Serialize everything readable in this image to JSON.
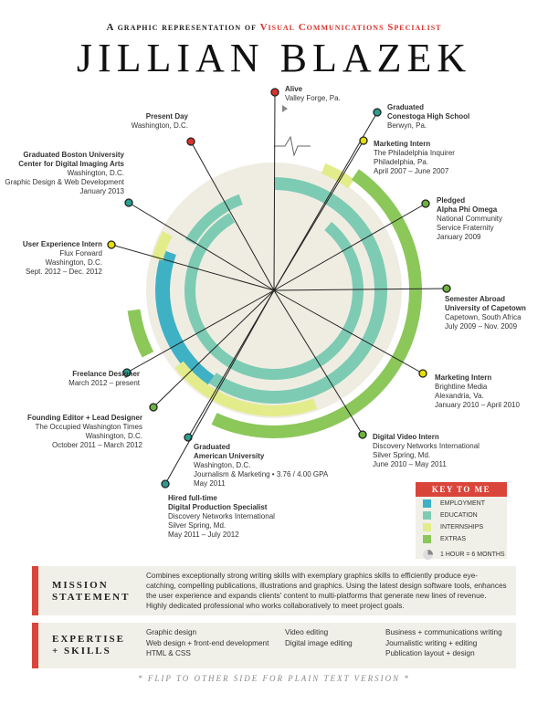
{
  "header": {
    "tagline_pre": "A graphic representation of",
    "tagline_role": "Visual Communications Specialist",
    "name": "JILLIAN BLAZEK"
  },
  "events": [
    {
      "title": [
        "Alive"
      ],
      "details": [
        "Valley Forge, Pa."
      ]
    },
    {
      "title": [
        "Graduated",
        "Conestoga High School"
      ],
      "details": [
        "Berwyn, Pa."
      ]
    },
    {
      "title": [
        "Marketing Intern"
      ],
      "details": [
        "The Philadelphia Inquirer",
        "Philadelphia, Pa.",
        "April 2007 – June 2007"
      ]
    },
    {
      "title": [
        "Pledged",
        "Alpha Phi Omega"
      ],
      "details": [
        "National Community",
        "Service Fraternity",
        "January 2009"
      ]
    },
    {
      "title": [
        "Semester Abroad",
        "University of Capetown"
      ],
      "details": [
        "Capetown, South Africa",
        "July 2009 – Nov. 2009"
      ]
    },
    {
      "title": [
        "Marketing Intern"
      ],
      "details": [
        "Brightline Media",
        "Alexandria, Va.",
        "January 2010 – April 2010"
      ]
    },
    {
      "title": [
        "Digital Video Intern"
      ],
      "details": [
        "Discovery Networks International",
        "Silver Spring, Md.",
        "June 2010 – May 2011"
      ]
    },
    {
      "title": [
        "Graduated",
        "American University"
      ],
      "details": [
        "Washington, D.C.",
        "Journalism & Marketing • 3.76 / 4.00 GPA",
        "May 2011"
      ]
    },
    {
      "title": [
        "Hired full-time",
        "Digital Production Specialist"
      ],
      "details": [
        "Discovery Networks International",
        "Silver Spring, Md.",
        "May 2011 – July 2012"
      ]
    },
    {
      "title": [
        "Founding Editor + Lead Designer"
      ],
      "details": [
        "The Occupied Washington Times",
        "Washington, D.C.",
        "October 2011 – March 2012"
      ]
    },
    {
      "title": [
        "Freelance Designer"
      ],
      "details": [
        "March 2012 – present"
      ]
    },
    {
      "title": [
        "User Experience Intern"
      ],
      "details": [
        "Flux Forward",
        "Washington, D.C.",
        "Sept. 2012 – Dec. 2012"
      ]
    },
    {
      "title": [
        "Graduated Boston University",
        "Center for Digital Imaging Arts"
      ],
      "details": [
        "Washington, D.C.",
        "Graphic Design & Web Development",
        "January 2013"
      ]
    },
    {
      "title": [
        "Present Day"
      ],
      "details": [
        "Washington, D.C."
      ]
    }
  ],
  "key": {
    "title": "KEY TO ME",
    "items": [
      "EMPLOYMENT",
      "EDUCATION",
      "INTERNSHIPS",
      "EXTRAS"
    ],
    "scale": "1 HOUR = 6 MONTHS"
  },
  "mission": {
    "label": [
      "Mission",
      "Statement"
    ],
    "text": "Combines exceptionally strong writing skills with exemplary graphics skills to efficiently produce eye-catching, compelling publications, illustrations and graphics. Using the latest design software tools, enhances the user experience and expands clients' content to multi-platforms that generate new lines of revenue. Highly dedicated professional who works collaboratively to meet project goals."
  },
  "expertise": {
    "label": [
      "Expertise",
      "+ Skills"
    ],
    "columns": [
      [
        "Graphic design",
        "Web design + front-end development",
        "HTML & CSS"
      ],
      [
        "Video editing",
        "Digital image editing"
      ],
      [
        "Business + communications writing",
        "Journalistic writing + editing",
        "Publication layout + design"
      ]
    ]
  },
  "footer": "* Flip to other side for plain text version *"
}
